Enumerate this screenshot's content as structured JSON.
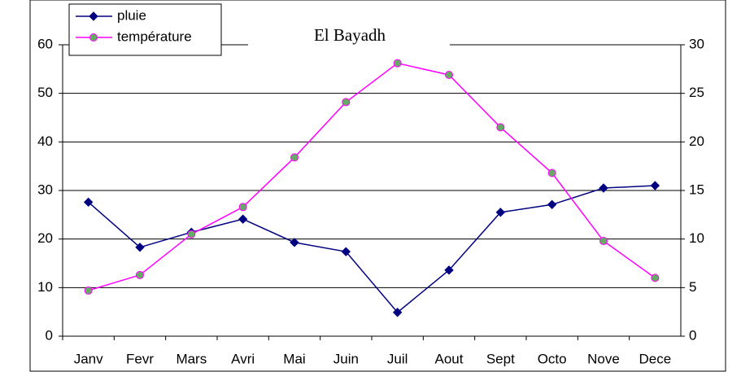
{
  "chart_data": {
    "type": "line",
    "title": "El Bayadh",
    "categories": [
      "Janv",
      "Fevr",
      "Mars",
      "Avri",
      "Mai",
      "Juin",
      "Juil",
      "Aout",
      "Sept",
      "Octo",
      "Nove",
      "Dece"
    ],
    "series": [
      {
        "name": "pluie",
        "color": "#000080",
        "marker": "diamond",
        "marker_color": "#000080",
        "values": [
          27.6,
          18.3,
          21.4,
          24.1,
          19.3,
          17.4,
          4.9,
          13.6,
          25.5,
          27.1,
          30.5,
          31.0
        ]
      },
      {
        "name": "température",
        "color": "#ff00ff",
        "marker": "circle",
        "marker_color": "#66aa66",
        "axis": "y2",
        "values": [
          4.7,
          6.3,
          10.5,
          13.3,
          18.4,
          24.1,
          28.1,
          26.9,
          21.5,
          16.8,
          9.8,
          6.0
        ]
      }
    ],
    "ylim": [
      0,
      60
    ],
    "yticks": [
      0,
      10,
      20,
      30,
      40,
      50,
      60
    ],
    "y2lim": [
      0,
      30
    ],
    "y2ticks": [
      0,
      5,
      10,
      15,
      20,
      25,
      30
    ],
    "grid": true,
    "legend": "top-left"
  }
}
